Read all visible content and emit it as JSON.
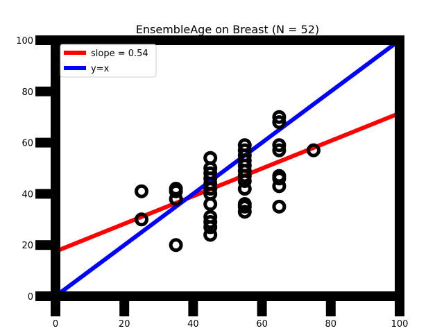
{
  "chart_data": {
    "type": "scatter",
    "title": "EnsembleAge on Breast (N = 52)",
    "xlabel": "",
    "ylabel": "",
    "xlim": [
      0,
      100
    ],
    "ylim": [
      0,
      100
    ],
    "xticks": [
      "0",
      "20",
      "40",
      "60",
      "80",
      "100"
    ],
    "yticks": [
      "0",
      "20",
      "40",
      "60",
      "80",
      "100"
    ],
    "grid": false,
    "legend_position": "top-left",
    "colors": {
      "points": "#000000",
      "fit": "#ff0000",
      "identity": "#0000ff",
      "frame": "#000000"
    },
    "points": [
      {
        "x": 25,
        "y": 41
      },
      {
        "x": 25,
        "y": 30
      },
      {
        "x": 35,
        "y": 42
      },
      {
        "x": 35,
        "y": 41
      },
      {
        "x": 35,
        "y": 38
      },
      {
        "x": 35,
        "y": 20
      },
      {
        "x": 45,
        "y": 54
      },
      {
        "x": 45,
        "y": 50
      },
      {
        "x": 45,
        "y": 48
      },
      {
        "x": 45,
        "y": 46
      },
      {
        "x": 45,
        "y": 44
      },
      {
        "x": 45,
        "y": 42
      },
      {
        "x": 45,
        "y": 40
      },
      {
        "x": 45,
        "y": 36
      },
      {
        "x": 45,
        "y": 31
      },
      {
        "x": 45,
        "y": 29
      },
      {
        "x": 45,
        "y": 27
      },
      {
        "x": 45,
        "y": 24
      },
      {
        "x": 55,
        "y": 59
      },
      {
        "x": 55,
        "y": 57
      },
      {
        "x": 55,
        "y": 55
      },
      {
        "x": 55,
        "y": 53
      },
      {
        "x": 55,
        "y": 51
      },
      {
        "x": 55,
        "y": 49
      },
      {
        "x": 55,
        "y": 47
      },
      {
        "x": 55,
        "y": 45
      },
      {
        "x": 55,
        "y": 42
      },
      {
        "x": 55,
        "y": 36
      },
      {
        "x": 55,
        "y": 35
      },
      {
        "x": 55,
        "y": 33
      },
      {
        "x": 65,
        "y": 70
      },
      {
        "x": 65,
        "y": 68
      },
      {
        "x": 65,
        "y": 59
      },
      {
        "x": 65,
        "y": 57
      },
      {
        "x": 65,
        "y": 47
      },
      {
        "x": 65,
        "y": 46
      },
      {
        "x": 65,
        "y": 43
      },
      {
        "x": 65,
        "y": 35
      },
      {
        "x": 75,
        "y": 57
      }
    ],
    "series": [
      {
        "name": "slope = 0.54",
        "type": "line",
        "color": "#ff0000",
        "x": [
          0,
          100
        ],
        "y": [
          17.5,
          71.5
        ]
      },
      {
        "name": "y=x",
        "type": "line",
        "color": "#0000ff",
        "x": [
          0,
          100
        ],
        "y": [
          0,
          100
        ]
      }
    ]
  }
}
